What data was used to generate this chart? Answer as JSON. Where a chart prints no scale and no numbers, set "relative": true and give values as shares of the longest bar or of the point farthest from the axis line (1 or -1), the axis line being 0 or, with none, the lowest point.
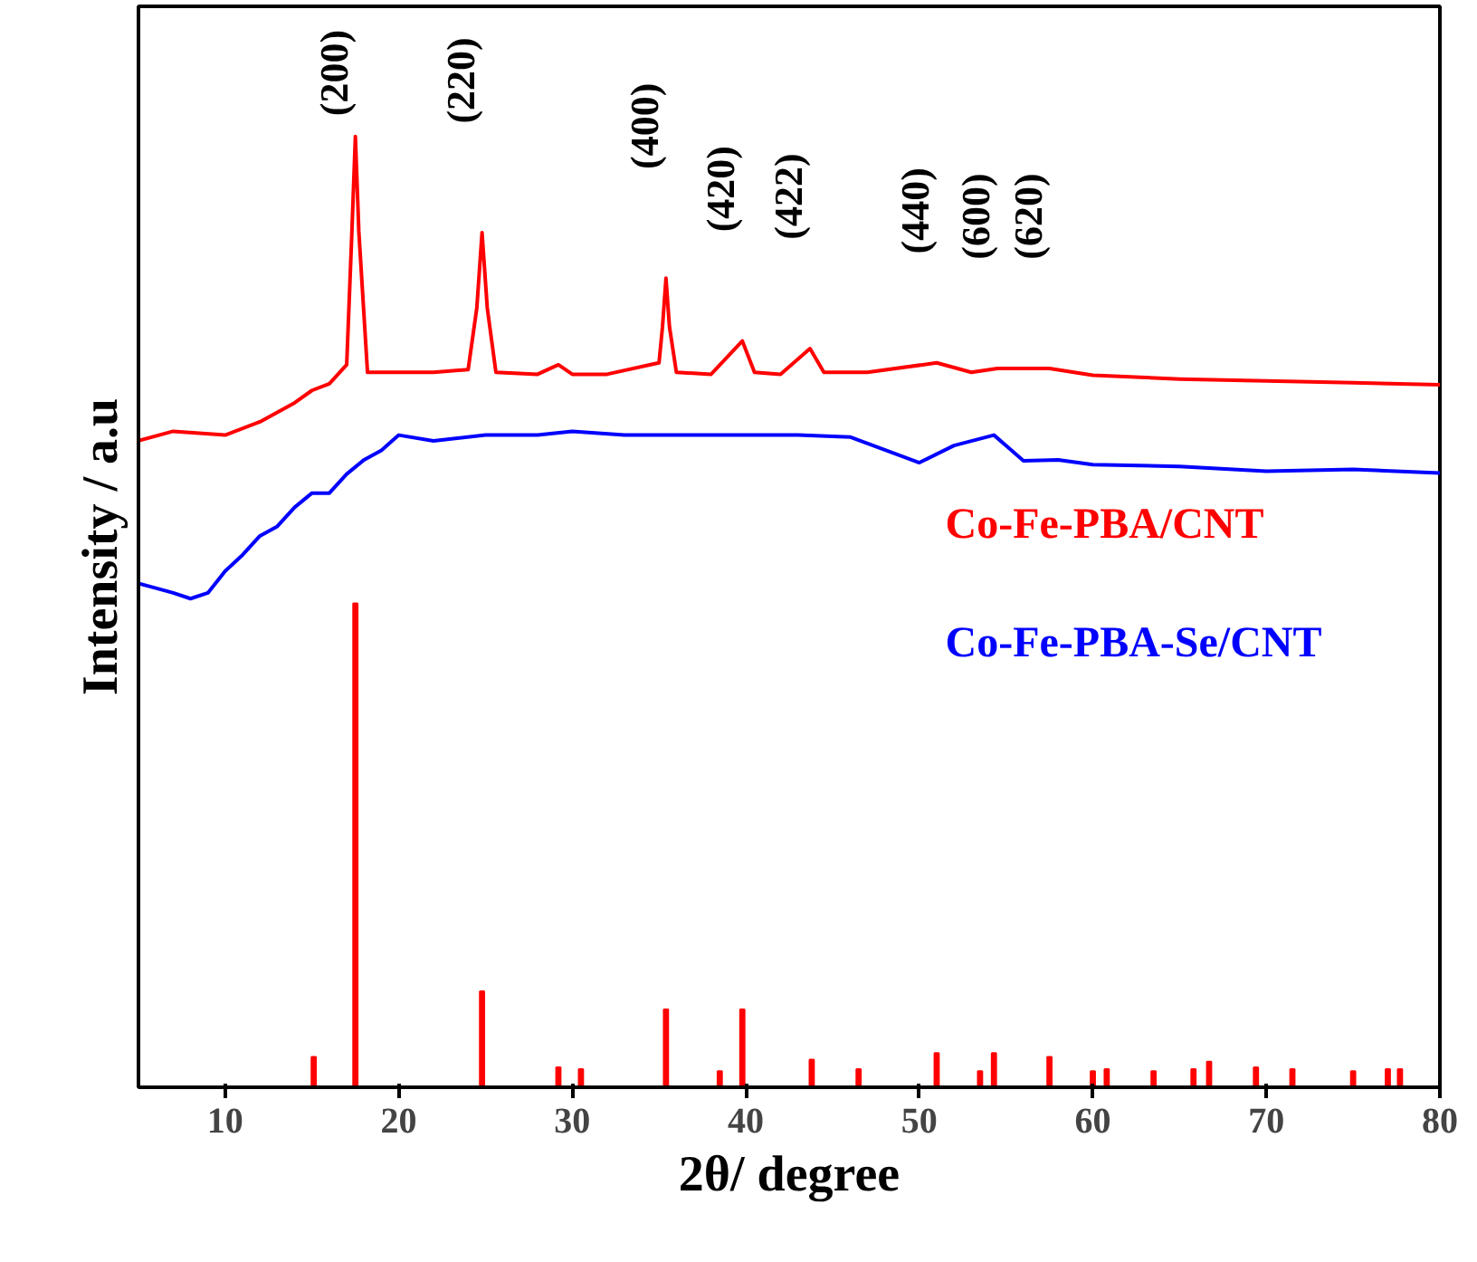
{
  "chart_data": {
    "type": "line",
    "relative": true,
    "xlabel": "2θ/ degree",
    "ylabel": "Intensity / a.u",
    "xlim": [
      5,
      80
    ],
    "xticks": [
      10,
      20,
      30,
      40,
      50,
      60,
      70,
      80
    ],
    "grid": false,
    "legend": "right",
    "marker": "none",
    "line_style": "solid",
    "series": [
      {
        "name": "Co-Fe-PBA/CNT",
        "color": "#ff0000",
        "x": [
          5,
          7,
          10,
          12,
          14,
          15,
          16,
          17,
          17.3,
          17.5,
          17.7,
          18.2,
          20,
          22,
          24,
          24.5,
          24.8,
          25.1,
          25.6,
          28,
          29.2,
          30,
          32,
          35,
          35.2,
          35.4,
          35.6,
          36,
          38,
          39.8,
          40.5,
          42,
          43.7,
          44.5,
          47,
          51,
          53,
          54.5,
          57.5,
          60,
          65,
          70,
          75,
          80
        ],
        "values": [
          0.68,
          0.69,
          0.686,
          0.7,
          0.72,
          0.733,
          0.74,
          0.76,
          0.9,
          1.0,
          0.9,
          0.752,
          0.752,
          0.752,
          0.755,
          0.82,
          0.899,
          0.82,
          0.752,
          0.75,
          0.76,
          0.75,
          0.75,
          0.762,
          0.8,
          0.851,
          0.8,
          0.752,
          0.75,
          0.785,
          0.752,
          0.75,
          0.777,
          0.752,
          0.752,
          0.762,
          0.752,
          0.756,
          0.756,
          0.749,
          0.745,
          0.743,
          0.741,
          0.739
        ]
      },
      {
        "name": "Co-Fe-PBA-Se/CNT",
        "color": "#0000ff",
        "x": [
          5,
          6,
          7,
          8,
          9,
          10,
          11,
          12,
          13,
          14,
          15,
          16,
          17,
          18,
          19,
          20,
          22,
          25,
          28,
          30,
          33,
          36,
          40,
          43,
          46,
          50,
          52,
          54.3,
          55,
          56,
          58,
          60,
          65,
          70,
          75,
          80
        ],
        "values": [
          0.53,
          0.525,
          0.52,
          0.514,
          0.52,
          0.543,
          0.56,
          0.58,
          0.59,
          0.61,
          0.625,
          0.625,
          0.645,
          0.66,
          0.67,
          0.686,
          0.68,
          0.686,
          0.686,
          0.69,
          0.686,
          0.686,
          0.686,
          0.686,
          0.684,
          0.657,
          0.675,
          0.686,
          0.675,
          0.659,
          0.66,
          0.655,
          0.653,
          0.648,
          0.65,
          0.646
        ]
      },
      {
        "color": "#ff0000",
        "type": "bar",
        "x": [
          15.1,
          17.5,
          24.8,
          29.2,
          30.5,
          35.4,
          38.5,
          39.8,
          43.8,
          46.5,
          51,
          53.5,
          54.3,
          57.5,
          60,
          60.8,
          63.5,
          65.8,
          66.7,
          69.4,
          71.5,
          75,
          77,
          77.7
        ],
        "values": [
          0.032,
          0.509,
          0.101,
          0.021,
          0.019,
          0.082,
          0.017,
          0.082,
          0.029,
          0.019,
          0.036,
          0.017,
          0.036,
          0.032,
          0.017,
          0.019,
          0.017,
          0.019,
          0.027,
          0.021,
          0.019,
          0.017,
          0.019,
          0.019
        ]
      }
    ],
    "annotations": [
      {
        "text": "(200)",
        "x": 17.5,
        "y": 1.0
      },
      {
        "text": "(220)",
        "x": 24.8,
        "y": 0.899
      },
      {
        "text": "(400)",
        "x": 35.4,
        "y": 0.851
      },
      {
        "text": "(420)",
        "x": 39.8,
        "y": 0.785
      },
      {
        "text": "(422)",
        "x": 43.7,
        "y": 0.777
      },
      {
        "text": "(440)",
        "x": 51,
        "y": 0.762
      },
      {
        "text": "(600)",
        "x": 54.5,
        "y": 0.756
      },
      {
        "text": "(620)",
        "x": 57.5,
        "y": 0.756
      }
    ]
  }
}
